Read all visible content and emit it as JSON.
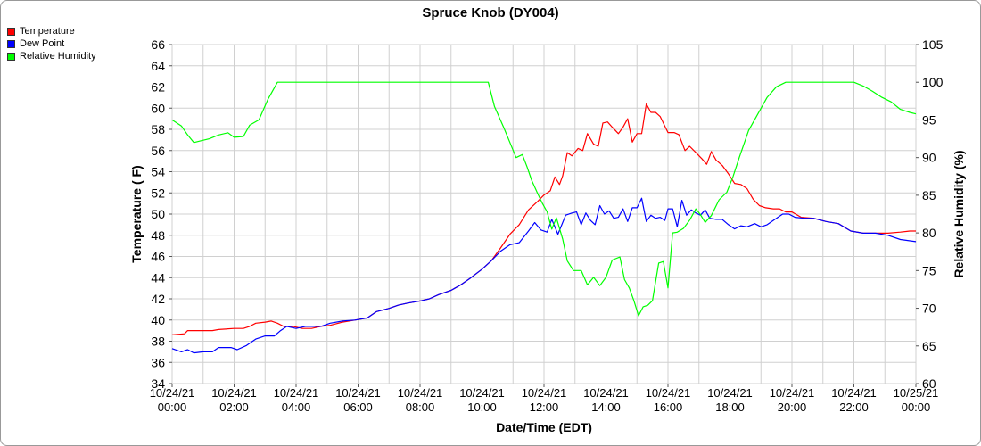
{
  "chart_data": {
    "type": "line",
    "title": "Spruce Knob (DY004)",
    "xlabel": "Date/Time (EDT)",
    "ylabel": "Temperature ( F)",
    "y2label": "Relative Humidity (%)",
    "grid": true,
    "legend_placement": "top-left",
    "xlim": [
      0,
      24
    ],
    "ylim": [
      34,
      66
    ],
    "y2lim": [
      60,
      105
    ],
    "x_ticks": [
      {
        "x": 0,
        "date": "10/24/21",
        "time": "00:00"
      },
      {
        "x": 2,
        "date": "10/24/21",
        "time": "02:00"
      },
      {
        "x": 4,
        "date": "10/24/21",
        "time": "04:00"
      },
      {
        "x": 6,
        "date": "10/24/21",
        "time": "06:00"
      },
      {
        "x": 8,
        "date": "10/24/21",
        "time": "08:00"
      },
      {
        "x": 10,
        "date": "10/24/21",
        "time": "10:00"
      },
      {
        "x": 12,
        "date": "10/24/21",
        "time": "12:00"
      },
      {
        "x": 14,
        "date": "10/24/21",
        "time": "14:00"
      },
      {
        "x": 16,
        "date": "10/24/21",
        "time": "16:00"
      },
      {
        "x": 18,
        "date": "10/24/21",
        "time": "18:00"
      },
      {
        "x": 20,
        "date": "10/24/21",
        "time": "20:00"
      },
      {
        "x": 22,
        "date": "10/24/21",
        "time": "22:00"
      },
      {
        "x": 24,
        "date": "10/25/21",
        "time": "00:00"
      }
    ],
    "y_ticks": [
      "34",
      "36",
      "38",
      "40",
      "42",
      "44",
      "46",
      "48",
      "50",
      "52",
      "54",
      "56",
      "58",
      "60",
      "62",
      "64",
      "66"
    ],
    "y2_ticks": [
      "60",
      "65",
      "70",
      "75",
      "80",
      "85",
      "90",
      "95",
      "100",
      "105"
    ],
    "series": [
      {
        "name": "Temperature",
        "color": "#ff0000",
        "axis": "left",
        "points": [
          [
            0,
            38.6
          ],
          [
            0.4,
            38.7
          ],
          [
            0.5,
            39.0
          ],
          [
            1.0,
            39.0
          ],
          [
            1.3,
            39.0
          ],
          [
            1.5,
            39.1
          ],
          [
            2.0,
            39.2
          ],
          [
            2.3,
            39.2
          ],
          [
            2.5,
            39.4
          ],
          [
            2.7,
            39.7
          ],
          [
            3.0,
            39.8
          ],
          [
            3.2,
            39.9
          ],
          [
            3.4,
            39.7
          ],
          [
            3.6,
            39.4
          ],
          [
            3.9,
            39.4
          ],
          [
            4.2,
            39.2
          ],
          [
            4.5,
            39.2
          ],
          [
            4.8,
            39.4
          ],
          [
            5.1,
            39.5
          ],
          [
            5.5,
            39.8
          ],
          [
            5.9,
            40.0
          ],
          [
            6.3,
            40.2
          ],
          [
            6.6,
            40.8
          ],
          [
            7.0,
            41.1
          ],
          [
            7.3,
            41.4
          ],
          [
            7.6,
            41.6
          ],
          [
            8.0,
            41.8
          ],
          [
            8.3,
            42.0
          ],
          [
            8.6,
            42.4
          ],
          [
            9.0,
            42.8
          ],
          [
            9.3,
            43.3
          ],
          [
            9.6,
            43.9
          ],
          [
            10.0,
            44.8
          ],
          [
            10.3,
            45.6
          ],
          [
            10.6,
            46.8
          ],
          [
            10.9,
            48.1
          ],
          [
            11.2,
            49.0
          ],
          [
            11.5,
            50.4
          ],
          [
            11.8,
            51.2
          ],
          [
            12.0,
            51.8
          ],
          [
            12.2,
            52.2
          ],
          [
            12.35,
            53.5
          ],
          [
            12.5,
            52.8
          ],
          [
            12.6,
            53.6
          ],
          [
            12.75,
            55.8
          ],
          [
            12.9,
            55.5
          ],
          [
            13.1,
            56.2
          ],
          [
            13.25,
            56.0
          ],
          [
            13.4,
            57.6
          ],
          [
            13.6,
            56.6
          ],
          [
            13.75,
            56.4
          ],
          [
            13.9,
            58.6
          ],
          [
            14.05,
            58.7
          ],
          [
            14.2,
            58.2
          ],
          [
            14.4,
            57.6
          ],
          [
            14.55,
            58.2
          ],
          [
            14.7,
            59.0
          ],
          [
            14.85,
            56.8
          ],
          [
            15.0,
            57.6
          ],
          [
            15.15,
            57.6
          ],
          [
            15.3,
            60.4
          ],
          [
            15.45,
            59.6
          ],
          [
            15.6,
            59.6
          ],
          [
            15.75,
            59.2
          ],
          [
            16.0,
            57.7
          ],
          [
            16.2,
            57.7
          ],
          [
            16.35,
            57.5
          ],
          [
            16.55,
            56.0
          ],
          [
            16.7,
            56.4
          ],
          [
            16.9,
            55.8
          ],
          [
            17.1,
            55.2
          ],
          [
            17.25,
            54.7
          ],
          [
            17.4,
            55.9
          ],
          [
            17.55,
            55.1
          ],
          [
            17.75,
            54.6
          ],
          [
            17.95,
            53.8
          ],
          [
            18.15,
            52.9
          ],
          [
            18.35,
            52.8
          ],
          [
            18.55,
            52.4
          ],
          [
            18.75,
            51.4
          ],
          [
            18.95,
            50.8
          ],
          [
            19.15,
            50.6
          ],
          [
            19.4,
            50.5
          ],
          [
            19.6,
            50.5
          ],
          [
            19.8,
            50.2
          ],
          [
            20.0,
            50.2
          ],
          [
            20.3,
            49.7
          ],
          [
            20.7,
            49.6
          ],
          [
            21.1,
            49.3
          ],
          [
            21.5,
            49.1
          ],
          [
            21.9,
            48.4
          ],
          [
            22.3,
            48.2
          ],
          [
            22.7,
            48.2
          ],
          [
            23.1,
            48.2
          ],
          [
            23.5,
            48.3
          ],
          [
            23.8,
            48.4
          ],
          [
            24.0,
            48.4
          ]
        ]
      },
      {
        "name": "Dew Point",
        "color": "#0000ff",
        "axis": "left",
        "points": [
          [
            0,
            37.3
          ],
          [
            0.3,
            37.0
          ],
          [
            0.5,
            37.2
          ],
          [
            0.7,
            36.9
          ],
          [
            1.0,
            37.0
          ],
          [
            1.3,
            37.0
          ],
          [
            1.5,
            37.4
          ],
          [
            1.9,
            37.4
          ],
          [
            2.1,
            37.2
          ],
          [
            2.4,
            37.6
          ],
          [
            2.7,
            38.2
          ],
          [
            3.0,
            38.5
          ],
          [
            3.3,
            38.5
          ],
          [
            3.5,
            39.0
          ],
          [
            3.7,
            39.4
          ],
          [
            4.0,
            39.2
          ],
          [
            4.3,
            39.4
          ],
          [
            4.8,
            39.4
          ],
          [
            5.1,
            39.7
          ],
          [
            5.5,
            39.9
          ],
          [
            5.9,
            40.0
          ],
          [
            6.3,
            40.2
          ],
          [
            6.6,
            40.8
          ],
          [
            7.0,
            41.1
          ],
          [
            7.3,
            41.4
          ],
          [
            7.6,
            41.6
          ],
          [
            8.0,
            41.8
          ],
          [
            8.3,
            42.0
          ],
          [
            8.6,
            42.4
          ],
          [
            9.0,
            42.8
          ],
          [
            9.3,
            43.3
          ],
          [
            9.6,
            43.9
          ],
          [
            10.0,
            44.8
          ],
          [
            10.3,
            45.6
          ],
          [
            10.6,
            46.5
          ],
          [
            10.9,
            47.1
          ],
          [
            11.2,
            47.3
          ],
          [
            11.5,
            48.4
          ],
          [
            11.7,
            49.2
          ],
          [
            11.9,
            48.5
          ],
          [
            12.1,
            48.3
          ],
          [
            12.25,
            49.5
          ],
          [
            12.45,
            48.1
          ],
          [
            12.7,
            49.9
          ],
          [
            12.9,
            50.1
          ],
          [
            13.05,
            50.2
          ],
          [
            13.2,
            49.0
          ],
          [
            13.35,
            50.1
          ],
          [
            13.5,
            49.4
          ],
          [
            13.65,
            49.0
          ],
          [
            13.8,
            50.8
          ],
          [
            13.95,
            50.0
          ],
          [
            14.1,
            50.3
          ],
          [
            14.25,
            49.6
          ],
          [
            14.4,
            49.7
          ],
          [
            14.55,
            50.5
          ],
          [
            14.7,
            49.3
          ],
          [
            14.85,
            50.6
          ],
          [
            15.0,
            50.6
          ],
          [
            15.15,
            51.5
          ],
          [
            15.3,
            49.3
          ],
          [
            15.45,
            49.9
          ],
          [
            15.6,
            49.6
          ],
          [
            15.75,
            49.7
          ],
          [
            15.9,
            49.4
          ],
          [
            16.0,
            50.5
          ],
          [
            16.15,
            50.5
          ],
          [
            16.3,
            48.8
          ],
          [
            16.45,
            51.3
          ],
          [
            16.6,
            49.9
          ],
          [
            16.75,
            50.4
          ],
          [
            16.9,
            50.1
          ],
          [
            17.05,
            49.9
          ],
          [
            17.2,
            50.4
          ],
          [
            17.35,
            49.6
          ],
          [
            17.55,
            49.5
          ],
          [
            17.75,
            49.5
          ],
          [
            17.95,
            49.0
          ],
          [
            18.15,
            48.6
          ],
          [
            18.35,
            48.9
          ],
          [
            18.55,
            48.8
          ],
          [
            18.8,
            49.1
          ],
          [
            19.0,
            48.8
          ],
          [
            19.2,
            49.0
          ],
          [
            19.45,
            49.5
          ],
          [
            19.7,
            50.0
          ],
          [
            19.9,
            50.0
          ],
          [
            20.1,
            49.7
          ],
          [
            20.4,
            49.6
          ],
          [
            20.7,
            49.6
          ],
          [
            21.1,
            49.3
          ],
          [
            21.5,
            49.1
          ],
          [
            21.9,
            48.4
          ],
          [
            22.3,
            48.2
          ],
          [
            22.7,
            48.2
          ],
          [
            23.1,
            48.0
          ],
          [
            23.5,
            47.6
          ],
          [
            24.0,
            47.4
          ]
        ]
      },
      {
        "name": "Relative Humidity",
        "color": "#00ff00",
        "axis": "right",
        "points": [
          [
            0,
            95.0
          ],
          [
            0.3,
            94.2
          ],
          [
            0.5,
            93.0
          ],
          [
            0.7,
            92.0
          ],
          [
            0.9,
            92.2
          ],
          [
            1.2,
            92.5
          ],
          [
            1.5,
            93.0
          ],
          [
            1.8,
            93.3
          ],
          [
            2.0,
            92.7
          ],
          [
            2.3,
            92.8
          ],
          [
            2.5,
            94.3
          ],
          [
            2.8,
            95.0
          ],
          [
            3.1,
            97.8
          ],
          [
            3.4,
            100.0
          ],
          [
            4.0,
            100.0
          ],
          [
            6.0,
            100.0
          ],
          [
            8.0,
            100.0
          ],
          [
            10.0,
            100.0
          ],
          [
            10.2,
            100.0
          ],
          [
            10.4,
            96.8
          ],
          [
            10.7,
            94.0
          ],
          [
            10.9,
            92.0
          ],
          [
            11.1,
            90.0
          ],
          [
            11.3,
            90.4
          ],
          [
            11.45,
            88.8
          ],
          [
            11.6,
            87.0
          ],
          [
            11.8,
            85.2
          ],
          [
            11.95,
            83.9
          ],
          [
            12.1,
            82.8
          ],
          [
            12.25,
            80.5
          ],
          [
            12.4,
            82.0
          ],
          [
            12.6,
            79.2
          ],
          [
            12.75,
            76.3
          ],
          [
            12.95,
            75.0
          ],
          [
            13.2,
            75.0
          ],
          [
            13.4,
            73.1
          ],
          [
            13.6,
            74.1
          ],
          [
            13.8,
            73.0
          ],
          [
            14.0,
            74.1
          ],
          [
            14.2,
            76.4
          ],
          [
            14.45,
            76.8
          ],
          [
            14.6,
            73.8
          ],
          [
            14.75,
            72.7
          ],
          [
            14.9,
            71.0
          ],
          [
            15.05,
            69.0
          ],
          [
            15.2,
            70.2
          ],
          [
            15.35,
            70.4
          ],
          [
            15.5,
            71.0
          ],
          [
            15.7,
            76.0
          ],
          [
            15.85,
            76.2
          ],
          [
            16.0,
            72.7
          ],
          [
            16.15,
            80.0
          ],
          [
            16.3,
            80.1
          ],
          [
            16.5,
            80.6
          ],
          [
            16.7,
            81.7
          ],
          [
            16.9,
            83.2
          ],
          [
            17.05,
            82.4
          ],
          [
            17.2,
            81.4
          ],
          [
            17.4,
            82.3
          ],
          [
            17.65,
            84.4
          ],
          [
            17.9,
            85.4
          ],
          [
            18.1,
            87.5
          ],
          [
            18.3,
            90.0
          ],
          [
            18.6,
            93.6
          ],
          [
            18.9,
            95.8
          ],
          [
            19.2,
            98.0
          ],
          [
            19.5,
            99.4
          ],
          [
            19.8,
            100.0
          ],
          [
            20.0,
            100.0
          ],
          [
            21.0,
            100.0
          ],
          [
            22.0,
            100.0
          ],
          [
            22.3,
            99.5
          ],
          [
            22.6,
            98.8
          ],
          [
            22.9,
            98.0
          ],
          [
            23.2,
            97.4
          ],
          [
            23.5,
            96.4
          ],
          [
            23.8,
            96.0
          ],
          [
            24.0,
            95.8
          ]
        ]
      }
    ]
  }
}
